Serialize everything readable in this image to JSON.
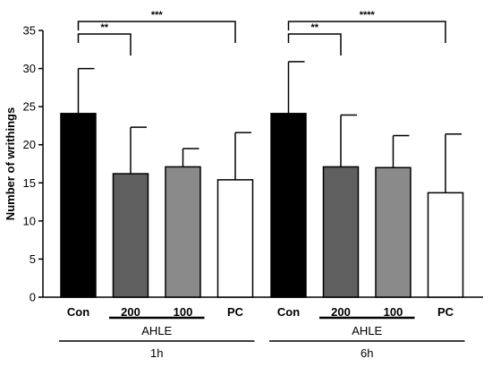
{
  "chart_data": {
    "type": "bar",
    "ylabel": "Number of writhings",
    "ylim": [
      0,
      35
    ],
    "yticks": [
      0,
      5,
      10,
      15,
      20,
      25,
      30,
      35
    ],
    "grid": false,
    "groups": [
      {
        "name": "1h",
        "subgroup_label": "AHLE",
        "bars": [
          {
            "label": "Con",
            "value": 24.1,
            "error": 5.9,
            "color": "#000000"
          },
          {
            "label": "200",
            "value": 16.2,
            "error": 6.1,
            "color": "#5f5f5f"
          },
          {
            "label": "100",
            "value": 17.1,
            "error": 2.4,
            "color": "#8a8a8a"
          },
          {
            "label": "PC",
            "value": 15.4,
            "error": 6.2,
            "color": "#ffffff"
          }
        ],
        "significance": [
          {
            "from": "Con",
            "to": "200",
            "stars": "**",
            "level": 1
          },
          {
            "from": "Con",
            "to": "PC",
            "stars": "***",
            "level": 2
          }
        ]
      },
      {
        "name": "6h",
        "subgroup_label": "AHLE",
        "bars": [
          {
            "label": "Con",
            "value": 24.1,
            "error": 6.8,
            "color": "#000000"
          },
          {
            "label": "200",
            "value": 17.1,
            "error": 6.8,
            "color": "#5f5f5f"
          },
          {
            "label": "100",
            "value": 17.0,
            "error": 4.2,
            "color": "#8a8a8a"
          },
          {
            "label": "PC",
            "value": 13.7,
            "error": 7.7,
            "color": "#ffffff"
          }
        ],
        "significance": [
          {
            "from": "Con",
            "to": "200",
            "stars": "**",
            "level": 1
          },
          {
            "from": "Con",
            "to": "PC",
            "stars": "****",
            "level": 2
          }
        ]
      }
    ]
  }
}
